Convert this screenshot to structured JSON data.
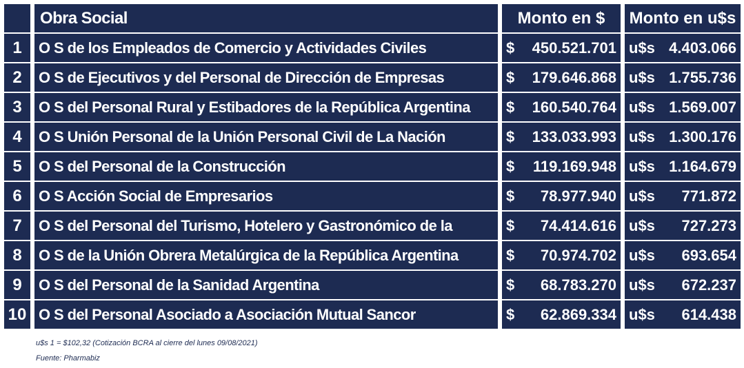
{
  "header": {
    "col_name": "Obra Social",
    "col_ars": "Monto en $",
    "col_usd": "Monto en u$s"
  },
  "currency": {
    "ars_symbol": "$",
    "usd_symbol": "u$s"
  },
  "rows": [
    {
      "rank": "1",
      "name": "O S de los Empleados de Comercio y Actividades Civiles",
      "ars": "450.521.701",
      "usd": "4.403.066"
    },
    {
      "rank": "2",
      "name": "O S de Ejecutivos y del Personal de Dirección de Empresas",
      "ars": "179.646.868",
      "usd": "1.755.736"
    },
    {
      "rank": "3",
      "name": "O S del Personal Rural y Estibadores de la República Argentina",
      "ars": "160.540.764",
      "usd": "1.569.007"
    },
    {
      "rank": "4",
      "name": "O S Unión Personal de la Unión Personal Civil de La Nación",
      "ars": "133.033.993",
      "usd": "1.300.176"
    },
    {
      "rank": "5",
      "name": "O S del Personal de la Construcción",
      "ars": "119.169.948",
      "usd": "1.164.679"
    },
    {
      "rank": "6",
      "name": "O S Acción Social de Empresarios",
      "ars": "78.977.940",
      "usd": "771.872"
    },
    {
      "rank": "7",
      "name": "O S del Personal del Turismo, Hotelero y Gastronómico de la",
      "ars": "74.414.616",
      "usd": "727.273"
    },
    {
      "rank": "8",
      "name": "O S de la Unión Obrera Metalúrgica de la República Argentina",
      "ars": "70.974.702",
      "usd": "693.654"
    },
    {
      "rank": "9",
      "name": "O S del Personal de la Sanidad Argentina",
      "ars": "68.783.270",
      "usd": "672.237"
    },
    {
      "rank": "10",
      "name": "O S del Personal Asociado a Asociación Mutual Sancor",
      "ars": "62.869.334",
      "usd": "614.438"
    }
  ],
  "notes": {
    "exchange": "u$s 1 = $102,32 (Cotización BCRA al cierre del lunes 09/08/2021)",
    "source": "Fuente: Pharmabiz"
  },
  "colors": {
    "cell_bg": "#1d2b52",
    "text": "#ffffff"
  }
}
